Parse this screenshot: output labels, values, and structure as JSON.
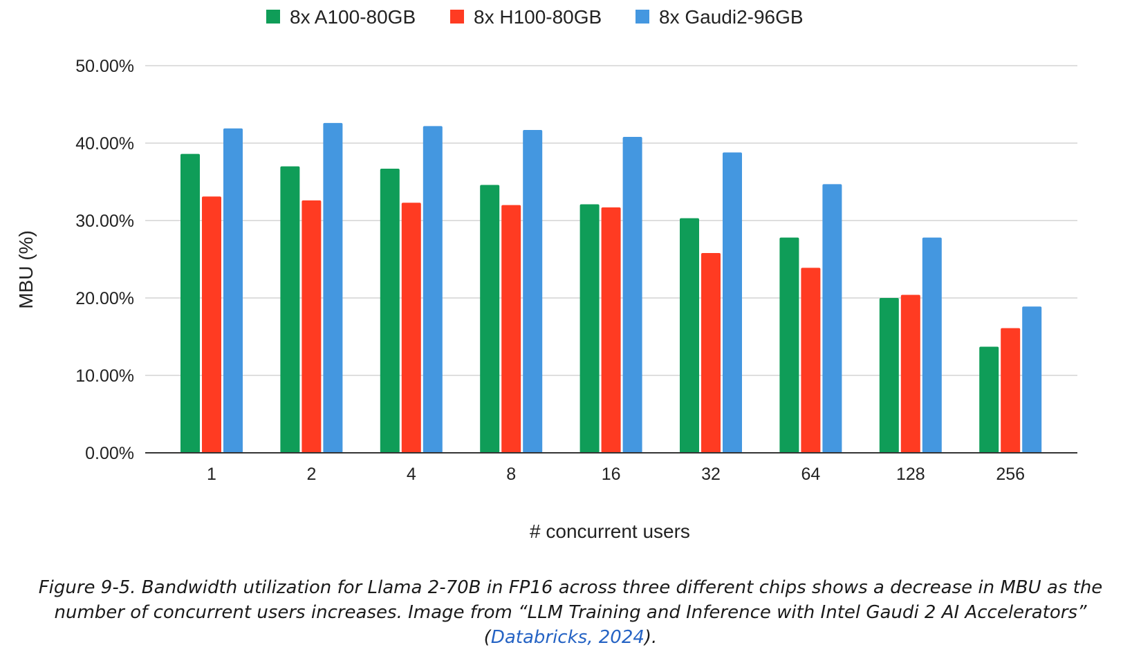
{
  "chart_data": {
    "type": "bar",
    "categories": [
      "1",
      "2",
      "4",
      "8",
      "16",
      "32",
      "64",
      "128",
      "256"
    ],
    "series": [
      {
        "name": "8x A100-80GB",
        "color": "#0f9d58",
        "values": [
          38.6,
          37.0,
          36.7,
          34.6,
          32.1,
          30.3,
          27.8,
          20.0,
          13.7
        ]
      },
      {
        "name": "8x H100-80GB",
        "color": "#ff3b22",
        "values": [
          33.1,
          32.6,
          32.3,
          32.0,
          31.7,
          25.8,
          23.9,
          20.4,
          16.1
        ]
      },
      {
        "name": "8x Gaudi2-96GB",
        "color": "#4497e0",
        "values": [
          41.9,
          42.6,
          42.2,
          41.7,
          40.8,
          38.8,
          34.7,
          27.8,
          18.9
        ]
      }
    ],
    "ylim": [
      0,
      50
    ],
    "yticks": [
      0,
      10,
      20,
      30,
      40,
      50
    ],
    "ytick_labels": [
      "0.00%",
      "10.00%",
      "20.00%",
      "30.00%",
      "40.00%",
      "50.00%"
    ],
    "xlabel": "# concurrent users",
    "ylabel": "MBU (%)",
    "grid": true,
    "legend_position": "top-center"
  },
  "caption": {
    "text": "Figure 9-5. Bandwidth utilization for Llama 2-70B in FP16 across three different chips shows a decrease in MBU as the number of concurrent users increases. Image from “LLM Training and Inference with Intel Gaudi 2 AI Accelerators” (",
    "link_text": "Databricks, 2024",
    "suffix": ")."
  }
}
